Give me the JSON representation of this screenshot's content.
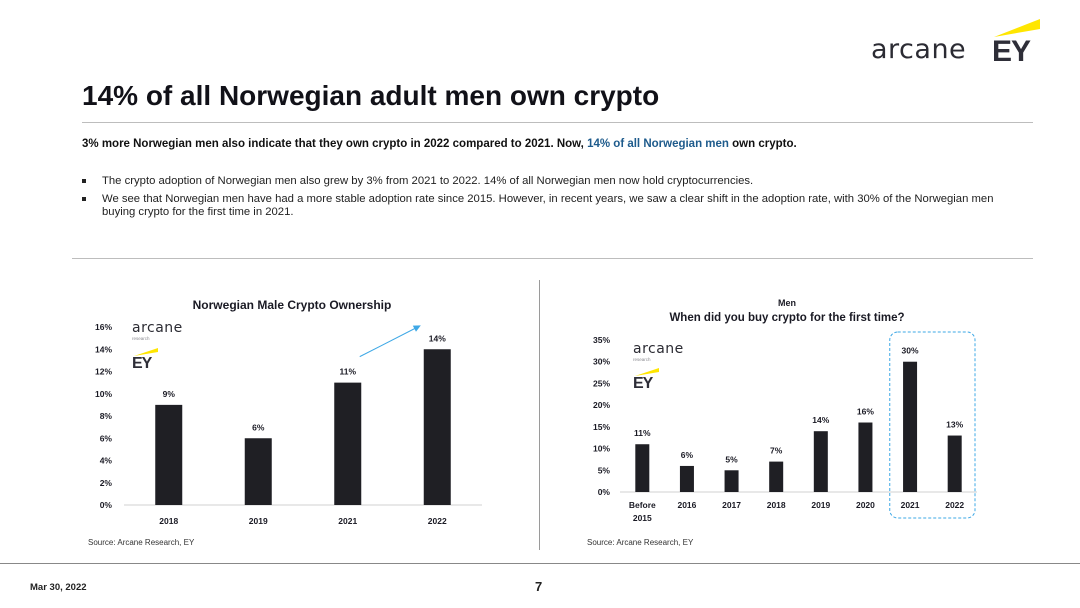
{
  "logos": {
    "arcane": "arcane",
    "research": "research",
    "ey": "EY",
    "ey_accent_color": "#ffe600"
  },
  "slide": {
    "title": "14% of all Norwegian adult men own crypto",
    "lead_part1": "3% more Norwegian men also indicate that they own crypto in 2022 compared to 2021. Now, ",
    "lead_highlight": "14% of all Norwegian men",
    "lead_part2": " own crypto.",
    "bullets": [
      "The crypto adoption of Norwegian men also grew by 3% from 2021 to 2022. 14% of all Norwegian men now hold cryptocurrencies.",
      "We see that Norwegian men have had a more stable adoption rate since 2015. However, in recent years, we saw a clear shift in the adoption rate, with 30% of the Norwegian men buying crypto for the first time in 2021."
    ]
  },
  "chart_data": [
    {
      "type": "bar",
      "title": "Norwegian Male Crypto Ownership",
      "categories": [
        "2018",
        "2019",
        "2021",
        "2022"
      ],
      "values": [
        9,
        6,
        11,
        14
      ],
      "value_labels": [
        "9%",
        "6%",
        "11%",
        "14%"
      ],
      "y_ticks": [
        "0%",
        "2%",
        "4%",
        "6%",
        "8%",
        "10%",
        "12%",
        "14%",
        "16%"
      ],
      "ylim": [
        0,
        16
      ],
      "bar_color": "#1f1f24",
      "annotation_arrow": {
        "from": "2021",
        "to": "2022",
        "color": "#3ea8e6"
      },
      "source": "Source: Arcane Research, EY"
    },
    {
      "type": "bar",
      "subtitle": "Men",
      "title": "When did you buy crypto for the first time?",
      "categories": [
        [
          "Before",
          "2015"
        ],
        [
          "2016"
        ],
        [
          "2017"
        ],
        [
          "2018"
        ],
        [
          "2019"
        ],
        [
          "2020"
        ],
        [
          "2021"
        ],
        [
          "2022"
        ]
      ],
      "values": [
        11,
        6,
        5,
        7,
        14,
        16,
        30,
        13
      ],
      "value_labels": [
        "11%",
        "6%",
        "5%",
        "7%",
        "14%",
        "16%",
        "30%",
        "13%"
      ],
      "y_ticks": [
        "0%",
        "5%",
        "10%",
        "15%",
        "20%",
        "25%",
        "30%",
        "35%"
      ],
      "ylim": [
        0,
        35
      ],
      "bar_color": "#1f1f24",
      "highlight_box": {
        "from": "2021",
        "to": "2022",
        "color": "#3ea8e6"
      },
      "source": "Source: Arcane Research, EY"
    }
  ],
  "footer": {
    "date": "Mar 30, 2022",
    "page": "7"
  }
}
